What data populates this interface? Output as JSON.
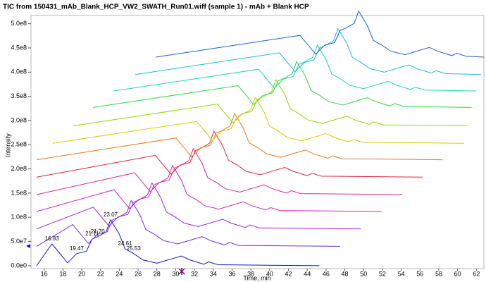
{
  "chart_data": {
    "type": "line",
    "title": "TIC from 150431_mAb_Blank_HCP_VW2_SWATH_Run01.wiff (sample 1) - mAb + Blank HCP",
    "x_label": "Time, min",
    "y_label": "Intensity",
    "xlim": [
      14.6,
      62.8
    ],
    "ylim": [
      -6000000,
      517000000
    ],
    "xticks": [
      16,
      18,
      20,
      22,
      24,
      26,
      28,
      30,
      32,
      34,
      36,
      38,
      40,
      42,
      44,
      46,
      48,
      50,
      52,
      54,
      56,
      58,
      60,
      62
    ],
    "yticks": [
      {
        "value": 0,
        "label": "0.0e0"
      },
      {
        "value": 50000000,
        "label": "5.0e7"
      },
      {
        "value": 100000000,
        "label": "1.0e8"
      },
      {
        "value": 150000000,
        "label": "1.5e8"
      },
      {
        "value": 200000000,
        "label": "2.0e8"
      },
      {
        "value": 250000000,
        "label": "2.5e8"
      },
      {
        "value": 300000000,
        "label": "3.0e8"
      },
      {
        "value": 350000000,
        "label": "3.5e8"
      },
      {
        "value": 400000000,
        "label": "4.0e8"
      },
      {
        "value": 450000000,
        "label": "4.5e8"
      },
      {
        "value": 500000000,
        "label": "5.0e8"
      }
    ],
    "grid": false,
    "series": [
      {
        "color": "#1414c8",
        "x": [
          15.2,
          16.83,
          18.5,
          19.47,
          20.5,
          21.11,
          21.7,
          22.6,
          23.07,
          24.0,
          24.61,
          25.53,
          26.5,
          28.0,
          30.6,
          31.5,
          33.0,
          33.5,
          34.5,
          45.3
        ],
        "values": [
          0,
          45000000.0,
          6000000.0,
          25000000.0,
          30000000.0,
          55000000.0,
          60000000.0,
          70000000.0,
          95000000.0,
          65000000.0,
          35000000.0,
          25000000.0,
          12000000.0,
          5000000.0,
          20000000.0,
          12000000.0,
          3000000.0,
          8000000.0,
          2000000.0,
          0
        ]
      },
      {
        "color": "#6a2ee8",
        "x": [
          15.2,
          19.03,
          20.7,
          21.67,
          22.7,
          23.31,
          23.9,
          24.8,
          25.27,
          26.2,
          26.81,
          27.73,
          28.7,
          30.2,
          32.8,
          33.7,
          35.2,
          35.7,
          36.7,
          47.5
        ],
        "values": [
          40000000.0,
          85000000.0,
          46000000.0,
          65000000.0,
          70000000.0,
          95000000.0,
          100000000.0,
          110000000.0,
          135000000.0,
          105000000.0,
          75000000.0,
          65000000.0,
          52000000.0,
          45000000.0,
          60000000.0,
          52000000.0,
          43000000.0,
          48000000.0,
          42000000.0,
          40000000.0
        ]
      },
      {
        "color": "#a020e0",
        "x": [
          15.2,
          21.23,
          22.9,
          23.87,
          24.9,
          25.51,
          26.1,
          27.0,
          27.47,
          28.4,
          29.01,
          29.93,
          30.9,
          32.4,
          35.0,
          35.9,
          37.4,
          37.9,
          38.9,
          49.7
        ],
        "values": [
          76000000.0,
          121000000.0,
          82000000.0,
          101000000.0,
          106000000.0,
          131000000.0,
          136000000.0,
          146000000.0,
          171000000.0,
          141000000.0,
          111000000.0,
          101000000.0,
          88000000.0,
          81000000.0,
          96000000.0,
          88000000.0,
          79000000.0,
          84000000.0,
          78000000.0,
          76000000.0
        ]
      },
      {
        "color": "#d020c8",
        "x": [
          15.2,
          23.43,
          25.1,
          26.07,
          27.1,
          27.71,
          28.3,
          29.2,
          29.67,
          30.6,
          31.21,
          32.13,
          33.1,
          34.6,
          37.2,
          38.1,
          39.6,
          40.1,
          41.1,
          51.9
        ],
        "values": [
          112000000.0,
          157000000.0,
          118000000.0,
          137000000.0,
          142000000.0,
          167000000.0,
          172000000.0,
          182000000.0,
          207000000.0,
          177000000.0,
          147000000.0,
          137000000.0,
          124000000.0,
          117000000.0,
          132000000.0,
          124000000.0,
          115000000.0,
          120000000.0,
          114000000.0,
          112000000.0
        ]
      },
      {
        "color": "#e02890",
        "x": [
          15.2,
          25.63,
          27.3,
          28.27,
          29.3,
          29.91,
          30.5,
          31.4,
          31.87,
          32.8,
          33.41,
          34.33,
          35.3,
          36.8,
          39.4,
          40.3,
          41.8,
          42.3,
          43.3,
          54.1
        ],
        "values": [
          147000000.0,
          192000000.0,
          153000000.0,
          172000000.0,
          177000000.0,
          202000000.0,
          207000000.0,
          217000000.0,
          242000000.0,
          212000000.0,
          182000000.0,
          172000000.0,
          159000000.0,
          152000000.0,
          167000000.0,
          159000000.0,
          150000000.0,
          155000000.0,
          149000000.0,
          147000000.0
        ]
      },
      {
        "color": "#e02438",
        "x": [
          15.2,
          27.83,
          29.5,
          30.47,
          31.5,
          32.11,
          32.7,
          33.6,
          34.07,
          35.0,
          35.61,
          36.53,
          37.5,
          39.0,
          41.6,
          42.5,
          44.0,
          44.5,
          45.5,
          56.3
        ],
        "values": [
          183000000.0,
          228000000.0,
          189000000.0,
          208000000.0,
          213000000.0,
          238000000.0,
          243000000.0,
          253000000.0,
          278000000.0,
          248000000.0,
          218000000.0,
          208000000.0,
          195000000.0,
          188000000.0,
          203000000.0,
          195000000.0,
          186000000.0,
          191000000.0,
          185000000.0,
          183000000.0
        ]
      },
      {
        "color": "#f07818",
        "x": [
          15.2,
          30.03,
          31.7,
          32.67,
          33.7,
          34.31,
          34.9,
          35.8,
          36.27,
          37.2,
          37.81,
          38.73,
          39.7,
          41.2,
          43.8,
          44.7,
          46.2,
          46.7,
          47.7,
          58.4
        ],
        "values": [
          219000000.0,
          264000000.0,
          225000000.0,
          244000000.0,
          249000000.0,
          274000000.0,
          279000000.0,
          289000000.0,
          314000000.0,
          284000000.0,
          254000000.0,
          244000000.0,
          231000000.0,
          224000000.0,
          239000000.0,
          231000000.0,
          222000000.0,
          227000000.0,
          221000000.0,
          219000000.0
        ]
      },
      {
        "color": "#d8c800",
        "x": [
          16.9,
          32.23,
          33.9,
          34.87,
          35.9,
          36.51,
          37.1,
          38.0,
          38.47,
          39.4,
          40.01,
          40.93,
          41.9,
          43.4,
          46.0,
          46.9,
          48.4,
          48.9,
          49.9,
          60.7
        ],
        "values": [
          253000000.0,
          298000000.0,
          259000000.0,
          278000000.0,
          283000000.0,
          308000000.0,
          313000000.0,
          323000000.0,
          348000000.0,
          318000000.0,
          288000000.0,
          278000000.0,
          265000000.0,
          258000000.0,
          273000000.0,
          265000000.0,
          256000000.0,
          261000000.0,
          255000000.0,
          253000000.0
        ]
      },
      {
        "color": "#90d800",
        "x": [
          19.1,
          34.43,
          36.1,
          37.07,
          38.1,
          38.71,
          39.3,
          40.2,
          40.67,
          41.6,
          42.21,
          43.13,
          44.1,
          45.6,
          48.2,
          49.1,
          50.6,
          51.1,
          52.1,
          61.0
        ],
        "values": [
          289000000.0,
          334000000.0,
          295000000.0,
          314000000.0,
          319000000.0,
          344000000.0,
          349000000.0,
          359000000.0,
          384000000.0,
          354000000.0,
          324000000.0,
          314000000.0,
          301000000.0,
          294000000.0,
          309000000.0,
          301000000.0,
          292000000.0,
          297000000.0,
          291000000.0,
          289000000.0
        ]
      },
      {
        "color": "#30d840",
        "x": [
          21.2,
          36.63,
          38.3,
          39.27,
          40.3,
          40.91,
          41.5,
          42.4,
          42.87,
          43.8,
          44.41,
          45.33,
          46.3,
          47.8,
          50.4,
          51.3,
          52.8,
          53.3,
          54.3,
          61.5
        ],
        "values": [
          327000000.0,
          372000000.0,
          333000000.0,
          352000000.0,
          357000000.0,
          382000000.0,
          387000000.0,
          397000000.0,
          422000000.0,
          392000000.0,
          362000000.0,
          352000000.0,
          339000000.0,
          332000000.0,
          347000000.0,
          339000000.0,
          330000000.0,
          335000000.0,
          329000000.0,
          327000000.0
        ]
      },
      {
        "color": "#18d8b0",
        "x": [
          23.4,
          38.83,
          40.5,
          41.47,
          42.5,
          43.11,
          43.7,
          44.6,
          45.07,
          46.0,
          46.61,
          47.53,
          48.5,
          50.0,
          52.6,
          53.5,
          55.0,
          55.5,
          56.5,
          62.0
        ],
        "values": [
          361000000.0,
          406000000.0,
          367000000.0,
          386000000.0,
          391000000.0,
          416000000.0,
          421000000.0,
          431000000.0,
          456000000.0,
          426000000.0,
          396000000.0,
          386000000.0,
          373000000.0,
          366000000.0,
          381000000.0,
          373000000.0,
          364000000.0,
          369000000.0,
          363000000.0,
          361000000.0
        ]
      },
      {
        "color": "#20b8e8",
        "x": [
          25.7,
          41.03,
          42.7,
          43.67,
          44.7,
          45.31,
          45.9,
          46.8,
          47.27,
          48.2,
          48.81,
          49.73,
          50.7,
          52.2,
          54.8,
          55.7,
          57.2,
          57.7,
          58.7,
          62.5
        ],
        "values": [
          395000000.0,
          440000000.0,
          401000000.0,
          420000000.0,
          425000000.0,
          450000000.0,
          455000000.0,
          465000000.0,
          490000000.0,
          460000000.0,
          430000000.0,
          420000000.0,
          407000000.0,
          400000000.0,
          415000000.0,
          407000000.0,
          398000000.0,
          403000000.0,
          397000000.0,
          395000000.0
        ]
      },
      {
        "color": "#1860d0",
        "x": [
          27.9,
          43.23,
          44.9,
          45.87,
          46.9,
          47.51,
          48.1,
          49.0,
          49.47,
          50.4,
          51.01,
          51.93,
          52.9,
          54.4,
          57.0,
          57.9,
          59.4,
          59.9,
          60.9,
          62.8
        ],
        "values": [
          431000000.0,
          476000000.0,
          437000000.0,
          456000000.0,
          461000000.0,
          486000000.0,
          491000000.0,
          501000000.0,
          526000000.0,
          496000000.0,
          466000000.0,
          456000000.0,
          443000000.0,
          436000000.0,
          451000000.0,
          443000000.0,
          434000000.0,
          439000000.0,
          433000000.0,
          431000000.0
        ]
      }
    ],
    "peak_labels": [
      {
        "x": 16.83,
        "y": 45000000.0
      },
      {
        "x": 19.47,
        "y": 25000000.0
      },
      {
        "x": 21.11,
        "y": 55000000.0
      },
      {
        "x": {
          "value": 21.7,
          "label": "21.70"
        },
        "y": 60000000.0
      },
      {
        "x": 23.07,
        "y": 95000000.0
      },
      {
        "x": 24.61,
        "y": 35000000.0
      },
      {
        "x": 25.53,
        "y": 25000000.0
      }
    ]
  }
}
